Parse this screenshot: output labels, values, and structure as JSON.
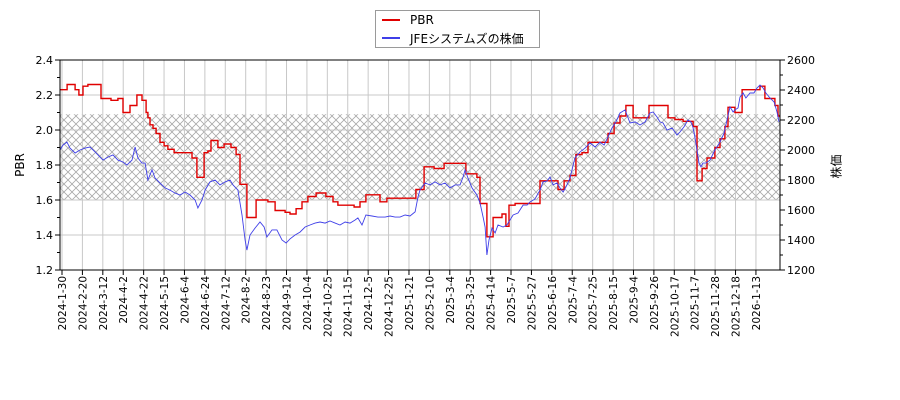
{
  "legend": {
    "items": [
      {
        "label": "PBR",
        "color": "#e00000"
      },
      {
        "label": "JFEシステムズの株価",
        "color": "#3f3fe8"
      }
    ]
  },
  "axes": {
    "left_title": "PBR",
    "right_title": "株価"
  },
  "chart_data": {
    "type": "line",
    "title": "",
    "xlabel": "",
    "ylabel": "PBR",
    "y2label": "株価",
    "ylim": [
      1.2,
      2.4
    ],
    "y2lim": [
      1200,
      2600
    ],
    "yticks": [
      "1.2",
      "1.4",
      "1.6",
      "1.8",
      "2.0",
      "2.2",
      "2.4"
    ],
    "y2ticks": [
      "1200",
      "1400",
      "1600",
      "1800",
      "2000",
      "2200",
      "2400",
      "2600"
    ],
    "grid": true,
    "legend_position": "top-center",
    "shaded_band": {
      "axis": "left",
      "from": 1.6,
      "to": 2.09,
      "style": "cross-hatch"
    },
    "categories": [
      "2024-1-30",
      "2024-2-20",
      "2024-3-12",
      "2024-4-2",
      "2024-4-22",
      "2024-5-15",
      "2024-6-4",
      "2024-6-24",
      "2024-7-12",
      "2024-8-2",
      "2024-8-23",
      "2024-9-12",
      "2024-10-4",
      "2024-10-25",
      "2024-11-15",
      "2024-12-5",
      "2024-12-25",
      "2025-1-21",
      "2025-2-10",
      "2025-3-4",
      "2025-3-25",
      "2025-4-14",
      "2025-5-7",
      "2025-5-27",
      "2025-6-16",
      "2025-7-4",
      "2025-7-25",
      "2025-8-15",
      "2025-9-4",
      "2025-9-26",
      "2025-10-17",
      "2025-11-7",
      "2025-11-28",
      "2025-12-18",
      "2026-1-13"
    ],
    "x_unit": "tick index (0 = first category, 1 per category)",
    "series": [
      {
        "name": "PBR",
        "axis": "left",
        "color": "#e00000",
        "step": true,
        "points": [
          [
            -0.1,
            2.23
          ],
          [
            0.25,
            2.26
          ],
          [
            0.64,
            2.23
          ],
          [
            0.83,
            2.2
          ],
          [
            1.03,
            2.25
          ],
          [
            1.27,
            2.26
          ],
          [
            1.91,
            2.18
          ],
          [
            2.4,
            2.17
          ],
          [
            2.74,
            2.18
          ],
          [
            2.99,
            2.1
          ],
          [
            3.33,
            2.14
          ],
          [
            3.67,
            2.2
          ],
          [
            3.92,
            2.17
          ],
          [
            4.12,
            2.1
          ],
          [
            4.21,
            2.07
          ],
          [
            4.31,
            2.03
          ],
          [
            4.46,
            2.01
          ],
          [
            4.61,
            1.98
          ],
          [
            4.8,
            1.93
          ],
          [
            5.0,
            1.91
          ],
          [
            5.19,
            1.89
          ],
          [
            5.49,
            1.87
          ],
          [
            6.37,
            1.84
          ],
          [
            6.61,
            1.73
          ],
          [
            6.96,
            1.87
          ],
          [
            7.15,
            1.88
          ],
          [
            7.3,
            1.94
          ],
          [
            7.64,
            1.9
          ],
          [
            7.94,
            1.92
          ],
          [
            8.28,
            1.9
          ],
          [
            8.53,
            1.86
          ],
          [
            8.72,
            1.69
          ],
          [
            9.06,
            1.5
          ],
          [
            9.51,
            1.6
          ],
          [
            10.09,
            1.59
          ],
          [
            10.44,
            1.54
          ],
          [
            10.93,
            1.53
          ],
          [
            11.17,
            1.52
          ],
          [
            11.47,
            1.55
          ],
          [
            11.76,
            1.59
          ],
          [
            12.05,
            1.62
          ],
          [
            12.45,
            1.64
          ],
          [
            12.93,
            1.62
          ],
          [
            13.28,
            1.59
          ],
          [
            13.52,
            1.57
          ],
          [
            14.31,
            1.56
          ],
          [
            14.6,
            1.59
          ],
          [
            14.89,
            1.63
          ],
          [
            15.58,
            1.59
          ],
          [
            15.92,
            1.61
          ],
          [
            17.34,
            1.66
          ],
          [
            17.74,
            1.79
          ],
          [
            18.23,
            1.78
          ],
          [
            18.72,
            1.81
          ],
          [
            19.79,
            1.75
          ],
          [
            20.33,
            1.73
          ],
          [
            20.48,
            1.58
          ],
          [
            20.82,
            1.39
          ],
          [
            21.12,
            1.5
          ],
          [
            21.56,
            1.52
          ],
          [
            21.75,
            1.45
          ],
          [
            21.9,
            1.57
          ],
          [
            22.2,
            1.58
          ],
          [
            23.42,
            1.71
          ],
          [
            24.3,
            1.66
          ],
          [
            24.6,
            1.71
          ],
          [
            24.89,
            1.74
          ],
          [
            25.18,
            1.86
          ],
          [
            25.48,
            1.87
          ],
          [
            25.77,
            1.93
          ],
          [
            26.75,
            1.98
          ],
          [
            27.05,
            2.04
          ],
          [
            27.34,
            2.08
          ],
          [
            27.63,
            2.14
          ],
          [
            27.98,
            2.07
          ],
          [
            28.76,
            2.14
          ],
          [
            29.69,
            2.07
          ],
          [
            30.03,
            2.06
          ],
          [
            30.43,
            2.05
          ],
          [
            30.92,
            2.02
          ],
          [
            31.11,
            1.71
          ],
          [
            31.36,
            1.78
          ],
          [
            31.6,
            1.84
          ],
          [
            31.99,
            1.9
          ],
          [
            32.24,
            1.95
          ],
          [
            32.48,
            2.02
          ],
          [
            32.63,
            2.13
          ],
          [
            32.97,
            2.1
          ],
          [
            33.32,
            2.23
          ],
          [
            34.2,
            2.25
          ],
          [
            34.44,
            2.18
          ],
          [
            34.93,
            2.14
          ],
          [
            35.08,
            2.08
          ],
          [
            35.18,
            2.08
          ]
        ]
      },
      {
        "name": "JFEシステムズの株価",
        "axis": "right",
        "color": "#3f3fe8",
        "step": false,
        "points": [
          [
            -0.1,
            2000
          ],
          [
            0.05,
            2033
          ],
          [
            0.24,
            2053
          ],
          [
            0.39,
            2013
          ],
          [
            0.64,
            1980
          ],
          [
            0.88,
            2000
          ],
          [
            1.13,
            2013
          ],
          [
            1.37,
            2020
          ],
          [
            1.62,
            1987
          ],
          [
            1.86,
            1953
          ],
          [
            2.01,
            1933
          ],
          [
            2.25,
            1953
          ],
          [
            2.5,
            1967
          ],
          [
            2.74,
            1933
          ],
          [
            2.99,
            1920
          ],
          [
            3.18,
            1900
          ],
          [
            3.43,
            1933
          ],
          [
            3.58,
            2020
          ],
          [
            3.72,
            1947
          ],
          [
            3.92,
            1913
          ],
          [
            4.07,
            1913
          ],
          [
            4.21,
            1800
          ],
          [
            4.41,
            1867
          ],
          [
            4.56,
            1813
          ],
          [
            4.8,
            1780
          ],
          [
            5.05,
            1747
          ],
          [
            5.29,
            1733
          ],
          [
            5.54,
            1713
          ],
          [
            5.78,
            1700
          ],
          [
            6.03,
            1720
          ],
          [
            6.27,
            1700
          ],
          [
            6.52,
            1667
          ],
          [
            6.66,
            1613
          ],
          [
            6.86,
            1667
          ],
          [
            7.01,
            1733
          ],
          [
            7.25,
            1787
          ],
          [
            7.5,
            1800
          ],
          [
            7.74,
            1767
          ],
          [
            7.99,
            1787
          ],
          [
            8.23,
            1800
          ],
          [
            8.38,
            1767
          ],
          [
            8.62,
            1733
          ],
          [
            8.82,
            1567
          ],
          [
            8.97,
            1400
          ],
          [
            9.06,
            1333
          ],
          [
            9.21,
            1433
          ],
          [
            9.46,
            1480
          ],
          [
            9.7,
            1520
          ],
          [
            9.9,
            1487
          ],
          [
            10.04,
            1420
          ],
          [
            10.29,
            1467
          ],
          [
            10.53,
            1467
          ],
          [
            10.78,
            1400
          ],
          [
            10.98,
            1380
          ],
          [
            11.17,
            1407
          ],
          [
            11.42,
            1433
          ],
          [
            11.66,
            1453
          ],
          [
            11.91,
            1487
          ],
          [
            12.15,
            1500
          ],
          [
            12.4,
            1513
          ],
          [
            12.64,
            1520
          ],
          [
            12.89,
            1513
          ],
          [
            13.13,
            1527
          ],
          [
            13.38,
            1513
          ],
          [
            13.62,
            1500
          ],
          [
            13.87,
            1520
          ],
          [
            14.11,
            1513
          ],
          [
            14.36,
            1533
          ],
          [
            14.5,
            1547
          ],
          [
            14.7,
            1500
          ],
          [
            14.89,
            1567
          ],
          [
            15.19,
            1560
          ],
          [
            15.48,
            1553
          ],
          [
            15.83,
            1553
          ],
          [
            16.07,
            1560
          ],
          [
            16.32,
            1553
          ],
          [
            16.56,
            1553
          ],
          [
            16.81,
            1567
          ],
          [
            17.05,
            1560
          ],
          [
            17.3,
            1587
          ],
          [
            17.44,
            1687
          ],
          [
            17.54,
            1733
          ],
          [
            17.79,
            1780
          ],
          [
            18.03,
            1767
          ],
          [
            18.28,
            1787
          ],
          [
            18.52,
            1767
          ],
          [
            18.77,
            1780
          ],
          [
            19.01,
            1747
          ],
          [
            19.26,
            1767
          ],
          [
            19.5,
            1767
          ],
          [
            19.65,
            1820
          ],
          [
            19.75,
            1867
          ],
          [
            19.89,
            1813
          ],
          [
            20.09,
            1747
          ],
          [
            20.33,
            1700
          ],
          [
            20.48,
            1647
          ],
          [
            20.63,
            1553
          ],
          [
            20.73,
            1487
          ],
          [
            20.82,
            1300
          ],
          [
            20.92,
            1400
          ],
          [
            21.07,
            1480
          ],
          [
            21.22,
            1447
          ],
          [
            21.36,
            1500
          ],
          [
            21.61,
            1487
          ],
          [
            21.8,
            1500
          ],
          [
            21.95,
            1533
          ],
          [
            22.1,
            1567
          ],
          [
            22.34,
            1580
          ],
          [
            22.59,
            1633
          ],
          [
            22.79,
            1633
          ],
          [
            22.93,
            1653
          ],
          [
            23.17,
            1673
          ],
          [
            23.42,
            1733
          ],
          [
            23.57,
            1787
          ],
          [
            23.76,
            1793
          ],
          [
            23.91,
            1820
          ],
          [
            24.06,
            1767
          ],
          [
            24.25,
            1780
          ],
          [
            24.4,
            1747
          ],
          [
            24.55,
            1720
          ],
          [
            24.69,
            1753
          ],
          [
            24.89,
            1813
          ],
          [
            25.13,
            1947
          ],
          [
            25.38,
            1987
          ],
          [
            25.63,
            2013
          ],
          [
            25.87,
            2047
          ],
          [
            26.12,
            2020
          ],
          [
            26.36,
            2053
          ],
          [
            26.56,
            2033
          ],
          [
            26.75,
            2087
          ],
          [
            26.95,
            2147
          ],
          [
            27.14,
            2187
          ],
          [
            27.34,
            2247
          ],
          [
            27.59,
            2267
          ],
          [
            27.83,
            2180
          ],
          [
            28.08,
            2187
          ],
          [
            28.32,
            2167
          ],
          [
            28.57,
            2187
          ],
          [
            28.81,
            2247
          ],
          [
            28.96,
            2253
          ],
          [
            29.15,
            2220
          ],
          [
            29.3,
            2187
          ],
          [
            29.45,
            2180
          ],
          [
            29.64,
            2133
          ],
          [
            29.89,
            2147
          ],
          [
            30.13,
            2100
          ],
          [
            30.28,
            2120
          ],
          [
            30.47,
            2153
          ],
          [
            30.67,
            2200
          ],
          [
            30.82,
            2187
          ],
          [
            30.91,
            2153
          ],
          [
            31.01,
            2087
          ],
          [
            31.11,
            2000
          ],
          [
            31.21,
            1913
          ],
          [
            31.31,
            1887
          ],
          [
            31.4,
            1913
          ],
          [
            31.55,
            1913
          ],
          [
            31.75,
            1933
          ],
          [
            31.99,
            2000
          ],
          [
            32.24,
            2053
          ],
          [
            32.44,
            2113
          ],
          [
            32.58,
            2200
          ],
          [
            32.73,
            2287
          ],
          [
            32.88,
            2253
          ],
          [
            32.97,
            2267
          ],
          [
            33.12,
            2280
          ],
          [
            33.22,
            2353
          ],
          [
            33.37,
            2380
          ],
          [
            33.51,
            2347
          ],
          [
            33.71,
            2380
          ],
          [
            33.9,
            2380
          ],
          [
            34.05,
            2413
          ],
          [
            34.2,
            2433
          ],
          [
            34.35,
            2413
          ],
          [
            34.49,
            2380
          ],
          [
            34.69,
            2347
          ],
          [
            34.89,
            2320
          ],
          [
            35.03,
            2253
          ],
          [
            35.13,
            2187
          ]
        ]
      }
    ]
  }
}
